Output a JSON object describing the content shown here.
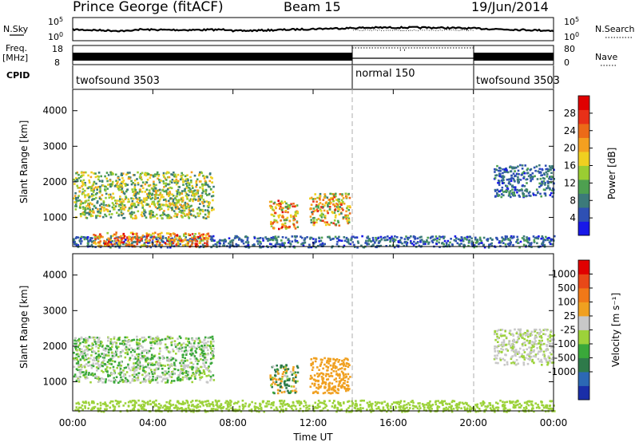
{
  "header": {
    "station": "Prince George (fitACF)",
    "beam": "Beam 15",
    "date": "19/Jun/2014"
  },
  "noise_panel": {
    "left_label": "N.Sky",
    "right_label": "N.Search",
    "tick_high": "10^5",
    "tick_low": "10^0"
  },
  "freq_panel": {
    "left_label_1": "Freq.",
    "left_label_2": "[MHz]",
    "right_label": "Nave",
    "left_ticks": [
      "18",
      "8"
    ],
    "right_ticks": [
      "80",
      "0"
    ]
  },
  "cpid": {
    "label": "CPID",
    "segments": [
      {
        "name": "twofsound 3503",
        "start_h": 0,
        "end_h": 14
      },
      {
        "name": "normal 150",
        "start_h": 14,
        "end_h": 20
      },
      {
        "name": "twofsound 3503",
        "start_h": 20,
        "end_h": 24
      }
    ]
  },
  "chart_data": [
    {
      "type": "heatmap",
      "title": "",
      "xlabel": "Time UT",
      "ylabel": "Slant Range [km]",
      "x_ticks": [
        "00:00",
        "04:00",
        "08:00",
        "12:00",
        "16:00",
        "20:00",
        "00:00"
      ],
      "y_ticks": [
        "1000",
        "2000",
        "3000",
        "4000"
      ],
      "xlim_hours": [
        0,
        24
      ],
      "ylim_km": [
        180,
        4600
      ],
      "colorbar": {
        "label": "Power [dB]",
        "ticks": [
          "4",
          "8",
          "12",
          "16",
          "20",
          "24",
          "28"
        ],
        "colors": [
          "#1818e8",
          "#2e50b4",
          "#3c7a7a",
          "#4ea050",
          "#9acd32",
          "#f0d020",
          "#f4a020",
          "#ec6a18",
          "#e83018",
          "#e00000"
        ]
      },
      "features": [
        {
          "name": "ground scatter band",
          "t_start_h": 0.0,
          "t_end_h": 24.0,
          "range_km": [
            180,
            500
          ],
          "power_db": [
            4,
            12
          ]
        },
        {
          "name": "near-range strong scatter",
          "t_start_h": 1.0,
          "t_end_h": 6.8,
          "range_km": [
            200,
            600
          ],
          "power_db": [
            16,
            30
          ]
        },
        {
          "name": "evening ionospheric band",
          "t_start_h": 0.0,
          "t_end_h": 7.0,
          "range_km": [
            1000,
            2300
          ],
          "power_db": [
            8,
            22
          ]
        },
        {
          "name": "morning patch",
          "t_start_h": 9.8,
          "t_end_h": 11.2,
          "range_km": [
            700,
            1500
          ],
          "power_db": [
            12,
            30
          ]
        },
        {
          "name": "midday patch",
          "t_start_h": 11.8,
          "t_end_h": 13.8,
          "range_km": [
            800,
            1700
          ],
          "power_db": [
            10,
            28
          ]
        },
        {
          "name": "late band",
          "t_start_h": 21.0,
          "t_end_h": 24.0,
          "range_km": [
            1600,
            2500
          ],
          "power_db": [
            4,
            12
          ]
        }
      ]
    },
    {
      "type": "heatmap",
      "title": "",
      "xlabel": "Time UT",
      "ylabel": "Slant Range [km]",
      "x_ticks": [
        "00:00",
        "04:00",
        "08:00",
        "12:00",
        "16:00",
        "20:00",
        "00:00"
      ],
      "y_ticks": [
        "1000",
        "2000",
        "3000",
        "4000"
      ],
      "xlim_hours": [
        0,
        24
      ],
      "ylim_km": [
        180,
        4600
      ],
      "colorbar": {
        "label": "Velocity [m s⁻¹]",
        "ticks": [
          "1000",
          "500",
          "100",
          "25",
          "-25",
          "-100",
          "-500",
          "-1000"
        ],
        "colors": [
          "#1a2ea8",
          "#2c68b4",
          "#2e7a4a",
          "#3aa83a",
          "#9cd23a",
          "#c8c8c8",
          "#f0a020",
          "#f07818",
          "#e84818",
          "#e00000"
        ]
      },
      "features": [
        {
          "name": "ground scatter (low velocity)",
          "t_start_h": 0.0,
          "t_end_h": 24.0,
          "range_km": [
            180,
            500
          ],
          "velocity_ms": [
            -25,
            25
          ]
        },
        {
          "name": "evening band",
          "t_start_h": 0.0,
          "t_end_h": 7.0,
          "range_km": [
            1000,
            2300
          ],
          "velocity_ms": [
            -100,
            100
          ]
        },
        {
          "name": "morning patch",
          "t_start_h": 9.8,
          "t_end_h": 11.2,
          "range_km": [
            700,
            1500
          ],
          "velocity_ms": [
            -500,
            500
          ]
        },
        {
          "name": "midday patch",
          "t_start_h": 11.8,
          "t_end_h": 13.8,
          "range_km": [
            700,
            1700
          ],
          "velocity_ms": [
            -500,
            -100
          ]
        },
        {
          "name": "late band",
          "t_start_h": 21.0,
          "t_end_h": 24.0,
          "range_km": [
            1500,
            2500
          ],
          "velocity_ms": [
            -100,
            25
          ]
        }
      ]
    }
  ]
}
